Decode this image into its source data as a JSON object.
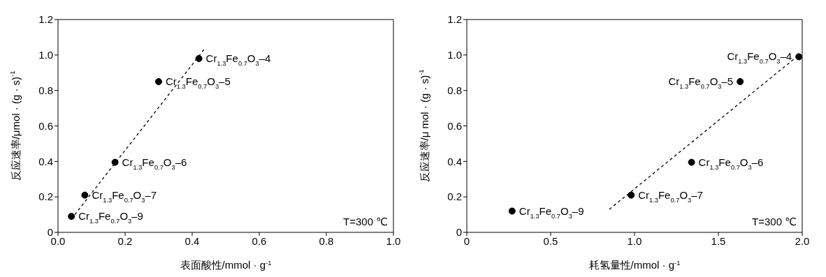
{
  "chart_data": [
    {
      "type": "scatter",
      "xlabel": "表面酸性/mmol · g$^{-1}$",
      "ylabel": "反应速率/μmol · (g · s)$^{-1}$",
      "marker": "circle",
      "xlim": [
        0,
        1
      ],
      "xticks": [
        {
          "value": 0,
          "label": "0.0"
        },
        {
          "value": 0.2,
          "label": "0.2"
        },
        {
          "value": 0.4,
          "label": "0.4"
        },
        {
          "value": 0.6,
          "label": "0.6"
        },
        {
          "value": 0.8,
          "label": "0.8"
        },
        {
          "value": 1,
          "label": "1.0"
        }
      ],
      "ylim": [
        0,
        1.2
      ],
      "yticks": [
        0,
        {
          "value": 0.2,
          "label": "0.2"
        },
        {
          "value": 0.4,
          "label": "0.4"
        },
        {
          "value": 0.6,
          "label": "0.6"
        },
        {
          "value": 0.8,
          "label": "0.8"
        },
        {
          "value": 1,
          "label": "1.0"
        },
        {
          "value": 1.2,
          "label": "1.2"
        }
      ],
      "series": [
        {
          "color": "#000000",
          "x": [
            0.04,
            0.08,
            0.17,
            0.3,
            0.42
          ],
          "values": [
            0.09,
            0.21,
            0.395,
            0.85,
            0.98
          ]
        },
        {
          "type": "line",
          "color": "#000000",
          "line_style": "dashed",
          "marker": "none",
          "x": [
            0.05,
            0.435
          ],
          "values": [
            0.1,
            1.03
          ]
        }
      ],
      "annotations": [
        {
          "text": "Cr$_{1.3}$Fe$_{0.7}$O$_{3}$–4",
          "x": 0.42,
          "y": 0.98
        },
        {
          "text": "Cr$_{1.3}$Fe$_{0.7}$O$_{3}$–5",
          "x": 0.3,
          "y": 0.85
        },
        {
          "text": "Cr$_{1.3}$Fe$_{0.7}$O$_{3}$–6",
          "x": 0.17,
          "y": 0.395
        },
        {
          "text": "Cr$_{1.3}$Fe$_{0.7}$O$_{3}$–7",
          "x": 0.08,
          "y": 0.21
        },
        {
          "text": "Cr$_{1.3}$Fe$_{0.7}$O$_{3}$–9",
          "x": 0.04,
          "y": 0.09
        },
        "T=300 ℃"
      ]
    },
    {
      "type": "scatter",
      "xlabel": "耗氢量性/mmol · g$^{-1}$",
      "ylabel": "反应速率/μ mol · (g · s)$^{-1}$",
      "marker": "circle",
      "xlim": [
        0,
        2
      ],
      "xticks": [
        0,
        {
          "value": 0.5,
          "label": "0.5"
        },
        {
          "value": 1,
          "label": "1.0"
        },
        {
          "value": 1.5,
          "label": "1.5"
        },
        {
          "value": 2,
          "label": "2.0"
        }
      ],
      "ylim": [
        0,
        1.2
      ],
      "yticks": [
        0,
        {
          "value": 0.2,
          "label": "0.2"
        },
        {
          "value": 0.4,
          "label": "0.4"
        },
        {
          "value": 0.6,
          "label": "0.6"
        },
        {
          "value": 0.8,
          "label": "0.8"
        },
        {
          "value": 1,
          "label": "1.0"
        },
        {
          "value": 1.2,
          "label": "1.2"
        }
      ],
      "series": [
        {
          "color": "#000000",
          "x": [
            0.27,
            0.98,
            1.34,
            1.63,
            1.98
          ],
          "values": [
            0.12,
            0.21,
            0.395,
            0.85,
            0.99
          ]
        },
        {
          "type": "line",
          "color": "#000000",
          "line_style": "dashed",
          "marker": "none",
          "x": [
            0.85,
            1.98
          ],
          "values": [
            0.13,
            1.0
          ]
        }
      ],
      "annotations": [
        {
          "text": "Cr$_{1.3}$Fe$_{0.7}$O$_{3}$–4",
          "x": 1.98,
          "y": 0.99
        },
        {
          "text": "Cr$_{1.3}$Fe$_{0.7}$O$_{3}$–5",
          "x": 1.63,
          "y": 0.85
        },
        {
          "text": "Cr$_{1.3}$Fe$_{0.7}$O$_{3}$–6",
          "x": 1.34,
          "y": 0.395
        },
        {
          "text": "Cr$_{1.3}$Fe$_{0.7}$O$_{3}$–7",
          "x": 0.98,
          "y": 0.21
        },
        {
          "text": "Cr$_{1.3}$Fe$_{0.7}$O$_{3}$–9",
          "x": 0.27,
          "y": 0.12
        },
        "T=300 ℃"
      ]
    }
  ]
}
